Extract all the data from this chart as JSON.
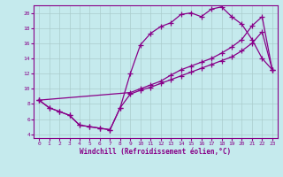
{
  "xlabel": "Windchill (Refroidissement éolien,°C)",
  "bg_color": "#c5eaed",
  "line_color": "#880088",
  "grid_color": "#aacccc",
  "xlim": [
    -0.5,
    23.5
  ],
  "ylim": [
    3.5,
    21.0
  ],
  "xticks": [
    0,
    1,
    2,
    3,
    4,
    5,
    6,
    7,
    8,
    9,
    10,
    11,
    12,
    13,
    14,
    15,
    16,
    17,
    18,
    19,
    20,
    21,
    22,
    23
  ],
  "yticks": [
    4,
    6,
    8,
    10,
    12,
    14,
    16,
    18,
    20
  ],
  "series": [
    {
      "x": [
        0,
        1,
        2,
        3,
        4,
        5,
        6,
        7,
        8,
        9,
        10,
        11,
        12,
        13,
        14,
        15,
        16,
        17,
        18,
        19,
        20,
        21,
        22,
        23
      ],
      "y": [
        8.5,
        7.5,
        7.0,
        6.5,
        5.2,
        5.0,
        4.8,
        4.6,
        7.5,
        9.3,
        9.8,
        10.2,
        10.7,
        11.2,
        11.7,
        12.2,
        12.7,
        13.2,
        13.7,
        14.2,
        15.0,
        16.0,
        17.5,
        12.5
      ]
    },
    {
      "x": [
        0,
        1,
        2,
        3,
        4,
        5,
        6,
        7,
        8,
        9,
        10,
        11,
        12,
        13,
        14,
        15,
        16,
        17,
        18,
        19,
        20,
        21,
        22,
        23
      ],
      "y": [
        8.5,
        7.5,
        7.0,
        6.5,
        5.2,
        5.0,
        4.8,
        4.6,
        7.5,
        12.0,
        15.8,
        17.3,
        18.2,
        18.7,
        19.8,
        20.0,
        19.5,
        20.5,
        20.8,
        19.5,
        18.5,
        16.5,
        14.0,
        12.5
      ]
    },
    {
      "x": [
        0,
        9,
        10,
        11,
        12,
        13,
        14,
        15,
        16,
        17,
        18,
        19,
        20,
        21,
        22,
        23
      ],
      "y": [
        8.5,
        9.5,
        10.0,
        10.5,
        11.0,
        11.8,
        12.5,
        13.0,
        13.5,
        14.0,
        14.7,
        15.5,
        16.5,
        18.3,
        19.5,
        12.5
      ]
    }
  ]
}
